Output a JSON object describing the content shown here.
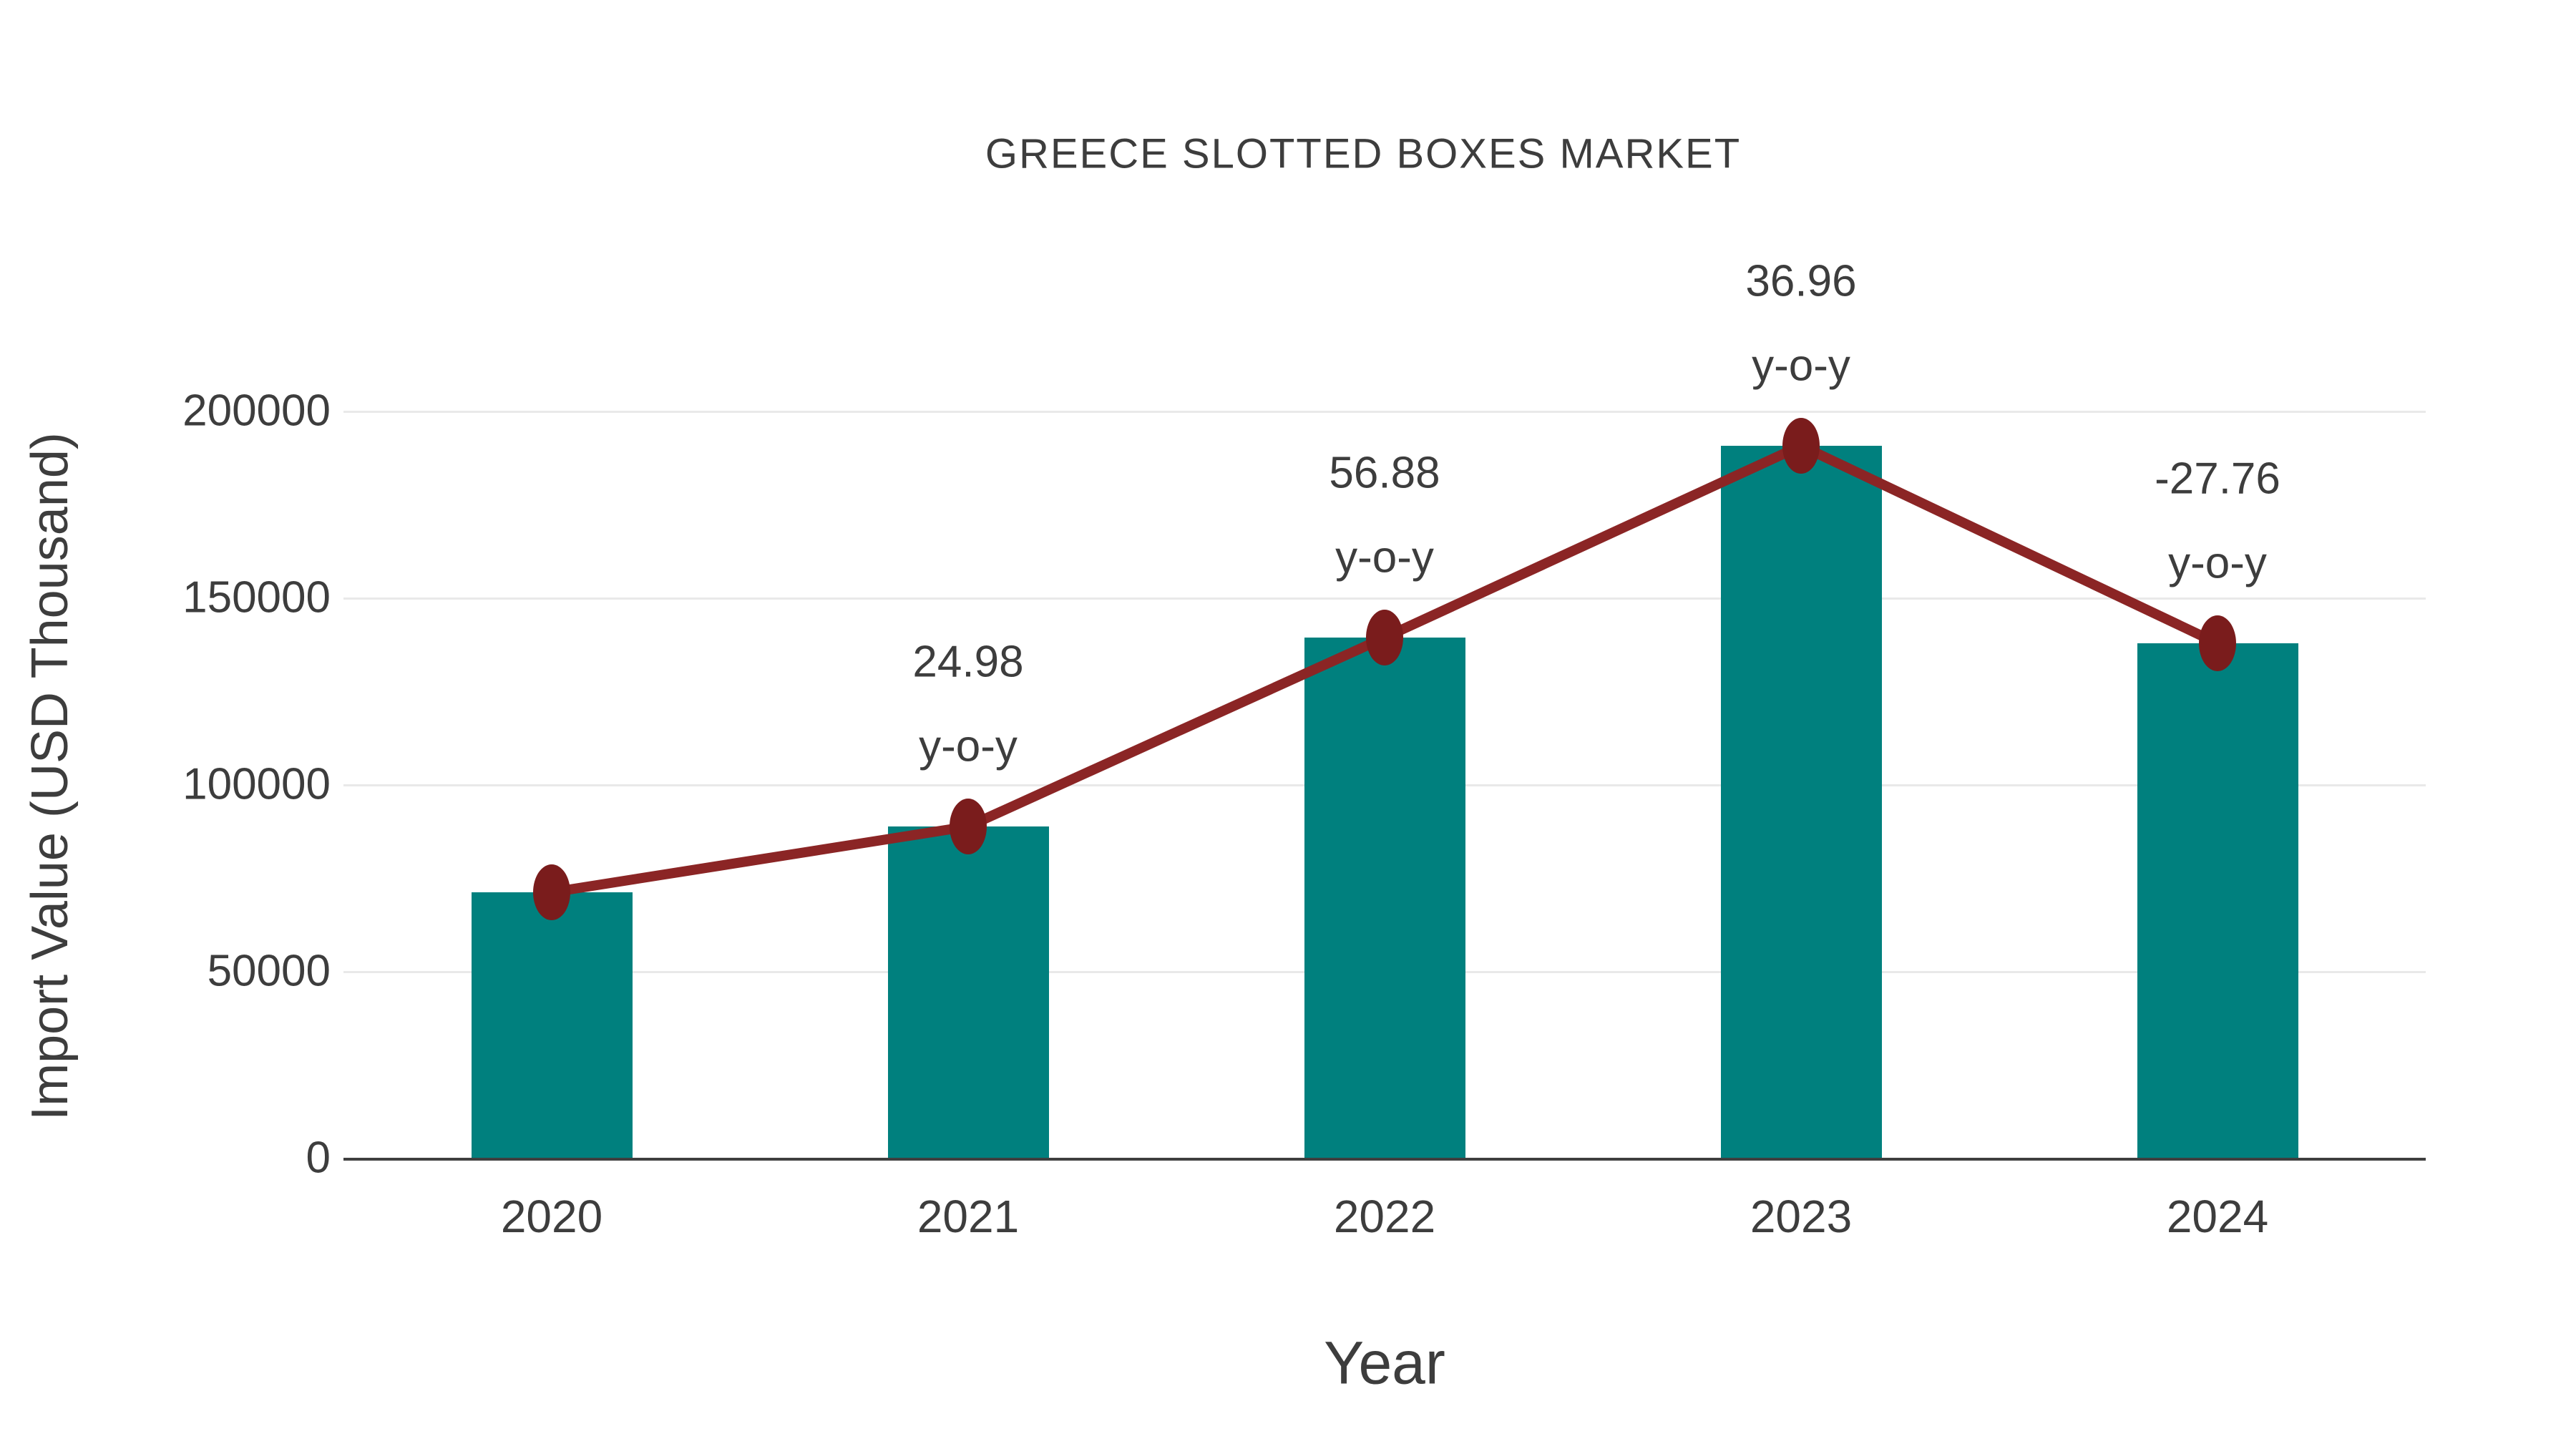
{
  "title": {
    "text": "GREECE SLOTTED BOXES MARKET"
  },
  "axes": {
    "x_title": "Year",
    "y_title": "Import Value (USD Thousand)"
  },
  "colors": {
    "bar": "#00807e",
    "line": "#8b2525",
    "marker": "#7a1c1c",
    "grid": "#e9e9e9",
    "axis": "#3f3f3f",
    "text": "#3d3d3d",
    "background": "#ffffff"
  },
  "chart_data": {
    "type": "bar",
    "title": "GREECE SLOTTED BOXES MARKET",
    "xlabel": "Year",
    "ylabel": "Import Value (USD Thousand)",
    "categories": [
      "2020",
      "2021",
      "2022",
      "2023",
      "2024"
    ],
    "series": [
      {
        "name": "Import Value (USD Thousand)",
        "type": "bar",
        "values": [
          71000,
          88700,
          139200,
          190700,
          137700
        ]
      },
      {
        "name": "y-o-y growth (%)",
        "type": "line",
        "values": [
          null,
          24.98,
          56.88,
          36.96,
          -27.76
        ]
      }
    ],
    "point_labels": [
      {
        "category": "2021",
        "value": "24.98",
        "suffix": "y-o-y"
      },
      {
        "category": "2022",
        "value": "56.88",
        "suffix": "y-o-y"
      },
      {
        "category": "2023",
        "value": "36.96",
        "suffix": "y-o-y"
      },
      {
        "category": "2024",
        "value": "-27.76",
        "suffix": "y-o-y"
      }
    ],
    "yticks": [
      0,
      50000,
      100000,
      150000,
      200000
    ],
    "ytick_labels": [
      "0",
      "50000",
      "100000",
      "150000",
      "200000"
    ],
    "ylim": [
      0,
      200000
    ],
    "grid": true,
    "legend": "none"
  }
}
